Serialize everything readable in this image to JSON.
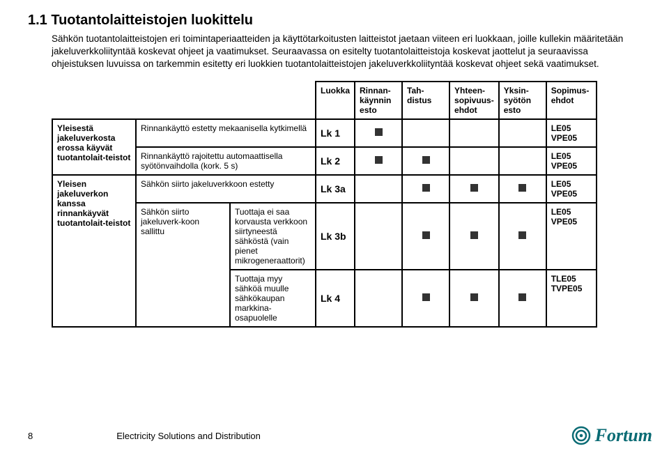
{
  "title": "1.1 Tuotantolaitteistojen luokittelu",
  "paragraph": "Sähkön tuotantolaitteistojen eri toimintaperiaatteiden ja käyttötarkoitusten laitteistot jaetaan viiteen eri luokkaan, joille kullekin määritetään jakeluverkkoliityntää koskevat ohjeet ja vaatimukset. Seuraavassa on esitelty tuotantolaitteistoja koskevat jaottelut ja seuraavissa ohjeistuksen luvuissa on tarkemmin esitetty eri luokkien tuotantolaitteistojen jakeluverkkoliityntää koskevat ohjeet sekä vaatimukset.",
  "headers": {
    "luokka": "Luokka",
    "rinnan": "Rinnan-käynnin esto",
    "tahdistus": "Tah-distus",
    "yhteen": "Yhteen-sopivuus-ehdot",
    "yksin": "Yksin-syötön esto",
    "sopimus": "Sopimus-ehdot"
  },
  "groups": [
    {
      "label": "Yleisestä jakeluverkosta erossa käyvät tuotantolait-teistot",
      "descRowspan": 2,
      "rows": [
        {
          "desc": "Rinnankäyttö estetty mekaanisella kytkimellä",
          "descColspan": 2,
          "lk": "Lk 1",
          "marks": [
            true,
            false,
            false,
            false
          ],
          "sop": "LE05 VPE05"
        },
        {
          "desc": "Rinnankäyttö rajoitettu automaattisella syötönvaihdolla (kork. 5 s)",
          "descColspan": 2,
          "lk": "Lk 2",
          "marks": [
            true,
            true,
            false,
            false
          ],
          "sop": "LE05 VPE05"
        }
      ]
    },
    {
      "label": "Yleisen jakeluverkon kanssa rinnankäyvät tuotantolait-teistot",
      "descRowspan": 3,
      "rows": [
        {
          "desc": "Sähkön siirto jakeluverkkoon estetty",
          "descColspan": 2,
          "lk": "Lk 3a",
          "marks": [
            false,
            true,
            true,
            true
          ],
          "sop": "LE05 VPE05"
        },
        {
          "desc": "Sähkön siirto jakeluverk-koon sallittu",
          "descColspan": 1,
          "subRowspan": 2,
          "desc2": "Tuottaja ei saa korvausta verkkoon siirtyneestä sähköstä (vain pienet mikrogeneraattorit)",
          "lk": "Lk 3b",
          "marks": [
            false,
            true,
            true,
            true
          ],
          "sop": "LE05 VPE05"
        },
        {
          "desc2Only": true,
          "desc2": "Tuottaja myy sähköä muulle sähkökaupan markkina-osapuolelle",
          "lk": "Lk 4",
          "marks": [
            false,
            true,
            true,
            true
          ],
          "sop": "TLE05 TVPE05"
        }
      ]
    }
  ],
  "footer": {
    "page": "8",
    "title": "Electricity Solutions and Distribution",
    "brand": "Fortum"
  },
  "colors": {
    "text": "#000000",
    "logo": "#0a6b74",
    "square": "#333333"
  }
}
